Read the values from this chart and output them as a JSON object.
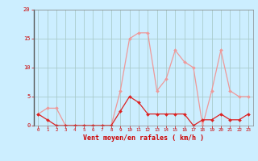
{
  "x": [
    0,
    1,
    2,
    3,
    4,
    5,
    6,
    7,
    8,
    9,
    10,
    11,
    12,
    13,
    14,
    15,
    16,
    17,
    18,
    19,
    20,
    21,
    22,
    23
  ],
  "wind_mean": [
    2,
    1,
    0,
    0,
    0,
    0,
    0,
    0,
    0,
    2.5,
    5,
    4,
    2,
    2,
    2,
    2,
    2,
    0,
    1,
    1,
    2,
    1,
    1,
    2
  ],
  "wind_gust": [
    2,
    3,
    3,
    0,
    0,
    0,
    0,
    0,
    0,
    6,
    15,
    16,
    16,
    6,
    8,
    13,
    11,
    10,
    0,
    6,
    13,
    6,
    5,
    5
  ],
  "mean_color": "#dd2222",
  "gust_color": "#ee9999",
  "background_color": "#cceeff",
  "grid_color": "#aacccc",
  "xlabel": "Vent moyen/en rafales ( km/h )",
  "xlabel_color": "#cc0000",
  "tick_color": "#cc0000",
  "ylim": [
    0,
    20
  ],
  "xlim": [
    -0.5,
    23.5
  ],
  "yticks": [
    0,
    5,
    10,
    15,
    20
  ],
  "xticks": [
    0,
    1,
    2,
    3,
    4,
    5,
    6,
    7,
    8,
    9,
    10,
    11,
    12,
    13,
    14,
    15,
    16,
    17,
    18,
    19,
    20,
    21,
    22,
    23
  ]
}
